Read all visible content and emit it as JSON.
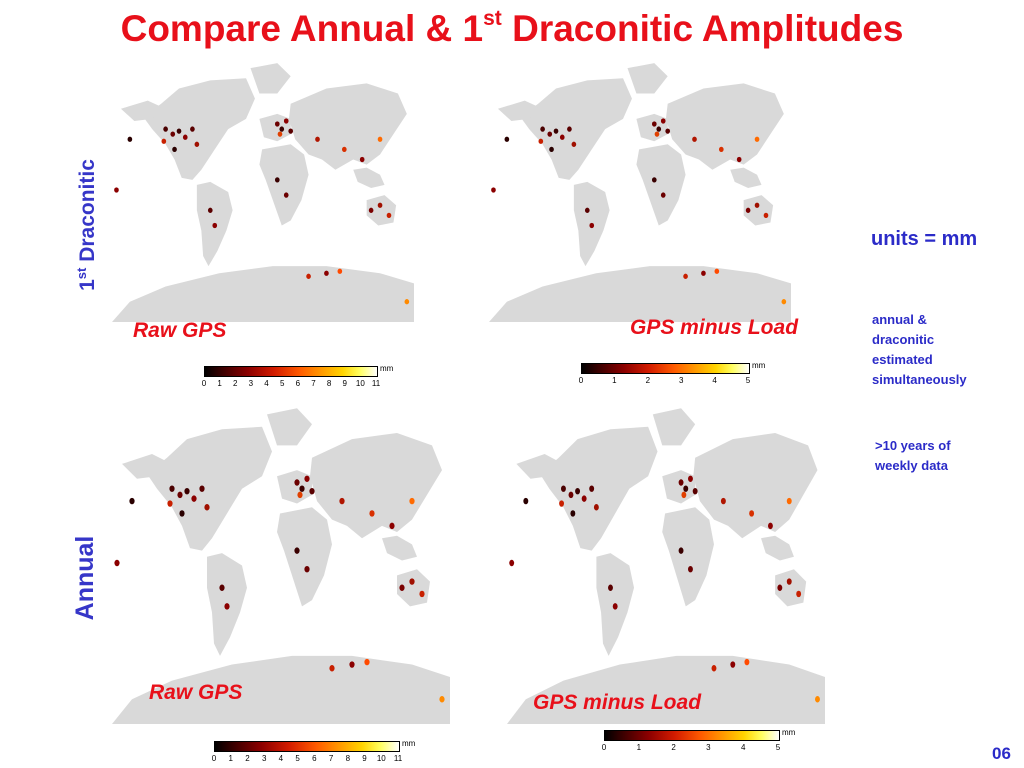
{
  "title": {
    "main": "Compare Annual & 1",
    "sup": "st",
    "rest": " Draconitic Amplitudes"
  },
  "row_labels": {
    "draconitic": {
      "prefix": "1",
      "sup": "st",
      "text": " Draconitic"
    },
    "annual": "Annual"
  },
  "maps": {
    "draco_raw": {
      "label": "Raw GPS"
    },
    "draco_load": {
      "label": "GPS minus Load"
    },
    "annual_raw": {
      "label": "Raw GPS"
    },
    "annual_load": {
      "label": "GPS minus Load"
    }
  },
  "colorbars": {
    "eleven": {
      "unit": "mm",
      "ticks": [
        "0",
        "1",
        "2",
        "3",
        "4",
        "5",
        "6",
        "7",
        "8",
        "9",
        "10",
        "11"
      ]
    },
    "five": {
      "unit": "mm",
      "ticks": [
        "0",
        "1",
        "2",
        "3",
        "4",
        "5"
      ]
    }
  },
  "side": {
    "units": "units = mm",
    "note1": [
      "annual &",
      "draconitic",
      "estimated",
      "simultaneously"
    ],
    "note2": [
      ">10 years of",
      "weekly data"
    ]
  },
  "page_number": "06",
  "colors": {
    "title": "#e8101a",
    "labels_blue": "#2b2bc8",
    "land": "#d9d9d9"
  }
}
